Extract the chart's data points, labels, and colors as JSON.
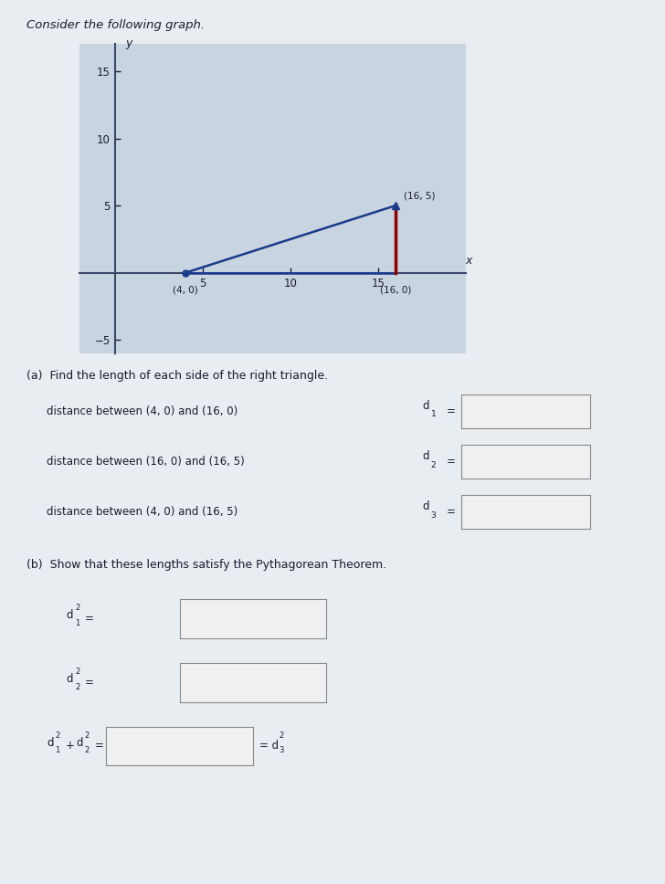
{
  "title": "Consider the following graph.",
  "graph_xlim": [
    -2,
    20
  ],
  "graph_ylim": [
    -6,
    17
  ],
  "graph_xticks": [
    5,
    10,
    15
  ],
  "graph_yticks": [
    -5,
    5,
    10,
    15
  ],
  "point_A": [
    4,
    0
  ],
  "point_B": [
    16,
    0
  ],
  "point_C": [
    16,
    5
  ],
  "triangle_line_color": "#1a3a8a",
  "vert_line_color": "#8B0000",
  "axis_color": "#3a4a6a",
  "bg_color": "#b8c8d8",
  "graph_bg_color": "#c8d5e0",
  "text_color": "#1a1a2e",
  "label_A": "(4, 0)",
  "label_B": "(16, 0)",
  "label_C": "(16, 5)",
  "part_a_title": "(a)  Find the length of each side of the right triangle.",
  "part_b_title": "(b)  Show that these lengths satisfy the Pythagorean Theorem.",
  "dist_label_1": "distance between (4, 0) and (16, 0)",
  "dist_label_2": "distance between (16, 0) and (16, 5)",
  "dist_label_3": "distance between (4, 0) and (16, 5)",
  "d1_label": "d",
  "d2_label": "d",
  "d3_label": "d",
  "d1sq_label": "d",
  "d2sq_label": "d",
  "d1sq_d2sq_label": "d",
  "d3sq_label": "= d",
  "box_color": "#f0f0f0",
  "box_edge_color": "#888888",
  "white_bg": "#e8edf2"
}
